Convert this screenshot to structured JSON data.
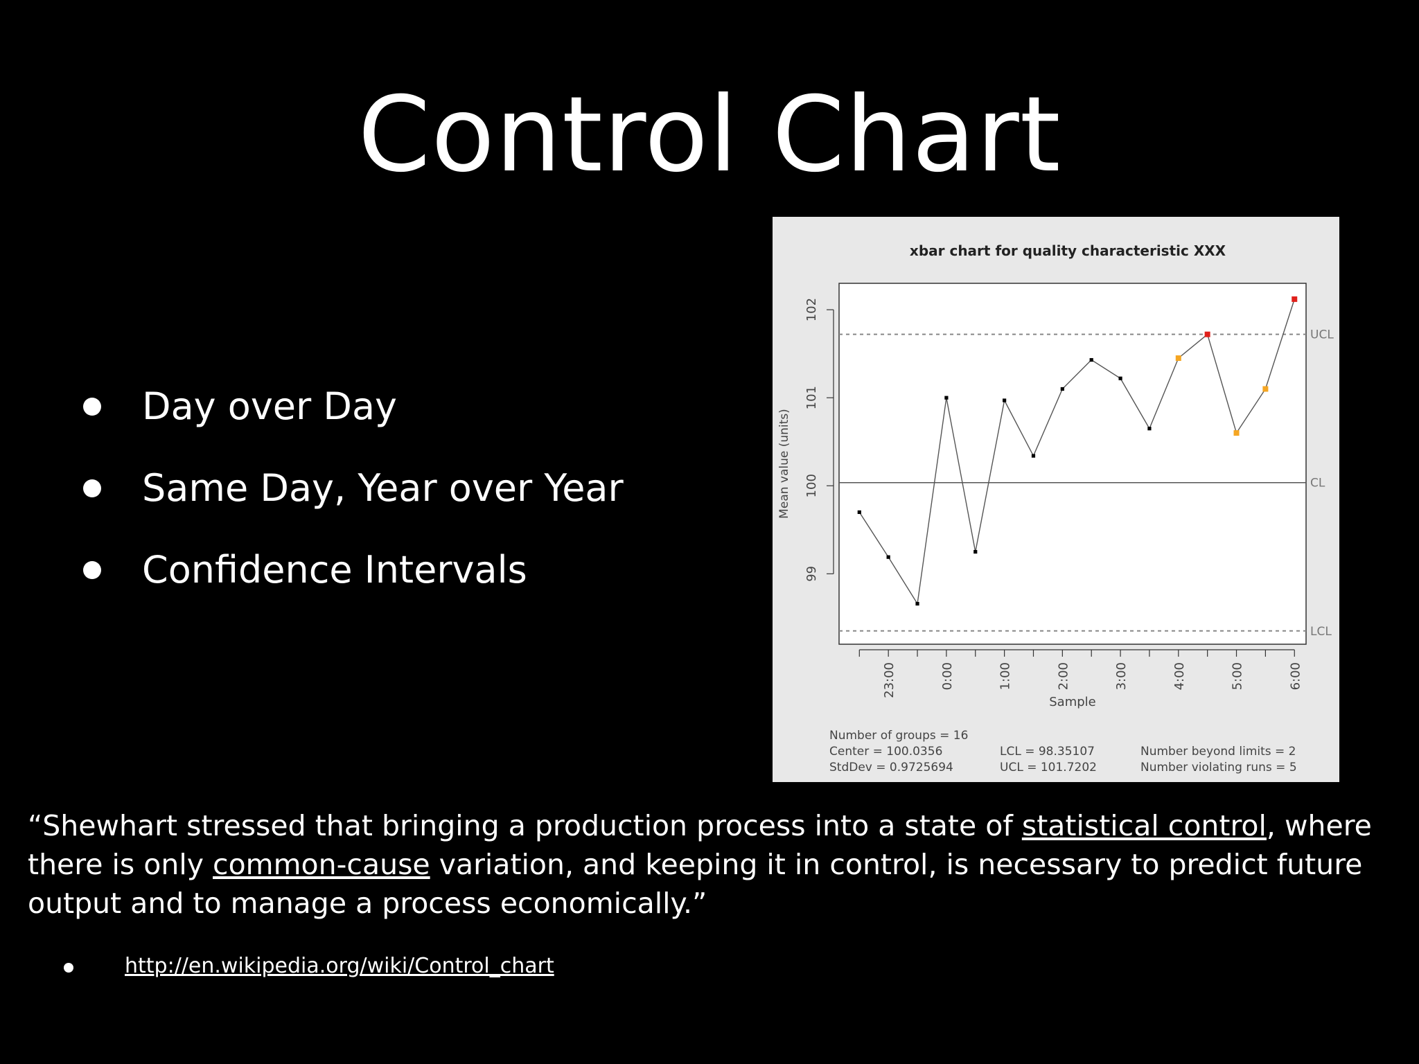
{
  "slide": {
    "title": "Control Chart",
    "bullets": [
      "Day over Day",
      "Same Day, Year over Year",
      "Confidence Intervals"
    ],
    "quote": {
      "open": "“Shewhart stressed that bringing a production process into a state of ",
      "link1": "statistical control",
      "mid1": ", where there is only ",
      "link2": "common-cause",
      "close": " variation, and keeping it in control, is necessary to predict future output and to manage a process economically.”"
    },
    "reference_url": "http://en.wikipedia.org/wiki/Control_chart"
  },
  "chart_data": {
    "type": "line",
    "title": "xbar chart for quality characteristic XXX",
    "xlabel": "Sample",
    "ylabel": "Mean value (units)",
    "ylim": [
      98.2,
      102.3
    ],
    "yticks": [
      99,
      100,
      101,
      102
    ],
    "xlim": [
      0.3,
      16.4
    ],
    "xtick_labels": [
      {
        "x": 2,
        "label": "23:00"
      },
      {
        "x": 4,
        "label": "0:00"
      },
      {
        "x": 6,
        "label": "1:00"
      },
      {
        "x": 8,
        "label": "2:00"
      },
      {
        "x": 10,
        "label": "3:00"
      },
      {
        "x": 12,
        "label": "4:00"
      },
      {
        "x": 14,
        "label": "5:00"
      },
      {
        "x": 16,
        "label": "6:00"
      }
    ],
    "minor_ticks": [
      1,
      3,
      5,
      7,
      9,
      11,
      13,
      15
    ],
    "x": [
      1,
      2,
      3,
      4,
      5,
      6,
      7,
      8,
      9,
      10,
      11,
      12,
      13,
      14,
      15,
      16
    ],
    "values": [
      99.7,
      99.19,
      98.66,
      101.0,
      99.25,
      100.97,
      100.34,
      101.1,
      101.43,
      101.22,
      100.65,
      101.45,
      101.72,
      100.6,
      101.1,
      102.12
    ],
    "point_status": [
      "normal",
      "normal",
      "normal",
      "normal",
      "normal",
      "normal",
      "normal",
      "normal",
      "normal",
      "normal",
      "normal",
      "run_violation",
      "beyond_limit",
      "run_violation",
      "run_violation",
      "beyond_limit"
    ],
    "status_colors": {
      "normal": "#000000",
      "run_violation": "#f5a623",
      "beyond_limit": "#e0201b"
    },
    "limits": {
      "UCL": {
        "value": 101.7202,
        "label": "UCL",
        "style": "dashed"
      },
      "CL": {
        "value": 100.0356,
        "label": "CL",
        "style": "solid"
      },
      "LCL": {
        "value": 98.35107,
        "label": "LCL",
        "style": "dashed"
      }
    },
    "stats": [
      "Number of groups = 16",
      "Center = 100.0356",
      "StdDev = 0.9725694",
      "LCL = 98.35107",
      "UCL = 101.7202",
      "Number beyond limits = 2",
      "Number violating runs = 5"
    ],
    "grid": false,
    "legend": "none"
  }
}
